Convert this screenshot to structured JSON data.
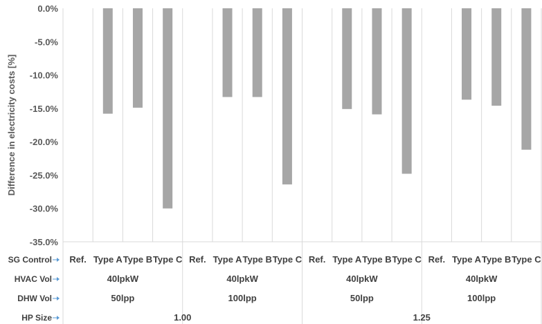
{
  "chart_data": {
    "type": "bar",
    "ylabel": "Difference in electricity costs [%]",
    "ylim": [
      -35,
      0
    ],
    "yticks": [
      "0.0%",
      "-5.0%",
      "-10.0%",
      "-15.0%",
      "-20.0%",
      "-25.0%",
      "-30.0%",
      "-35.0%"
    ],
    "grid": "vertical",
    "colors": {
      "bar": "#a6a6a6",
      "grid": "#d9d9d9",
      "axis_text": "#595959",
      "arrow": "#5b9bd5"
    },
    "category_levels": [
      {
        "name": "SG Control",
        "labels": [
          "Ref.",
          "Type A",
          "Type B",
          "Type C",
          "Ref.",
          "Type A",
          "Type B",
          "Type C",
          "Ref.",
          "Type A",
          "Type B",
          "Type C",
          "Ref.",
          "Type A",
          "Type B",
          "Type C"
        ]
      },
      {
        "name": "HVAC Vol",
        "labels": [
          "40lpkW",
          "40lpkW",
          "40lpkW",
          "40lpkW"
        ]
      },
      {
        "name": "DHW Vol",
        "labels": [
          "50lpp",
          "100lpp",
          "50lpp",
          "100lpp"
        ]
      },
      {
        "name": "HP Size",
        "labels": [
          "1.00",
          "1.25"
        ]
      }
    ],
    "series": [
      {
        "values": [
          0,
          -15.8,
          -14.9,
          -30.0,
          0,
          -13.3,
          -13.3,
          -26.4,
          0,
          -15.1,
          -15.9,
          -24.8,
          0,
          -13.7,
          -14.6,
          -21.2
        ]
      }
    ]
  }
}
